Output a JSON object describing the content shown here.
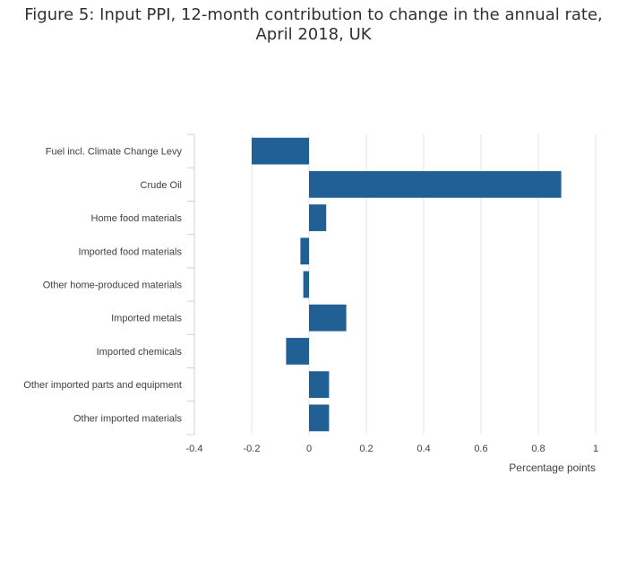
{
  "chart_data": {
    "type": "bar",
    "orientation": "horizontal",
    "title_lines": [
      "Figure 5: Input PPI, 12-month contribution to change in the annual rate,",
      "April 2018, UK"
    ],
    "categories": [
      "Fuel incl. Climate Change Levy",
      "Crude Oil",
      "Home food materials",
      "Imported food materials",
      "Other home-produced materials",
      "Imported metals",
      "Imported chemicals",
      "Other imported parts and equipment",
      "Other imported materials"
    ],
    "values": [
      -0.2,
      0.88,
      0.06,
      -0.03,
      -0.02,
      0.13,
      -0.08,
      0.07,
      0.07
    ],
    "xlabel": "Percentage points",
    "ylabel": "",
    "xlim": [
      -0.4,
      1
    ],
    "xticks": [
      -0.4,
      -0.2,
      0,
      0.2,
      0.4,
      0.6,
      0.8,
      1
    ],
    "xtick_labels": [
      "-0.4",
      "-0.2",
      "0",
      "0.2",
      "0.4",
      "0.6",
      "0.8",
      "1"
    ],
    "grid": "vertical",
    "legend": "none",
    "bar_color": "#206095",
    "grid_color": "#e6e6e6",
    "axis_color": "#d0d0d0"
  }
}
